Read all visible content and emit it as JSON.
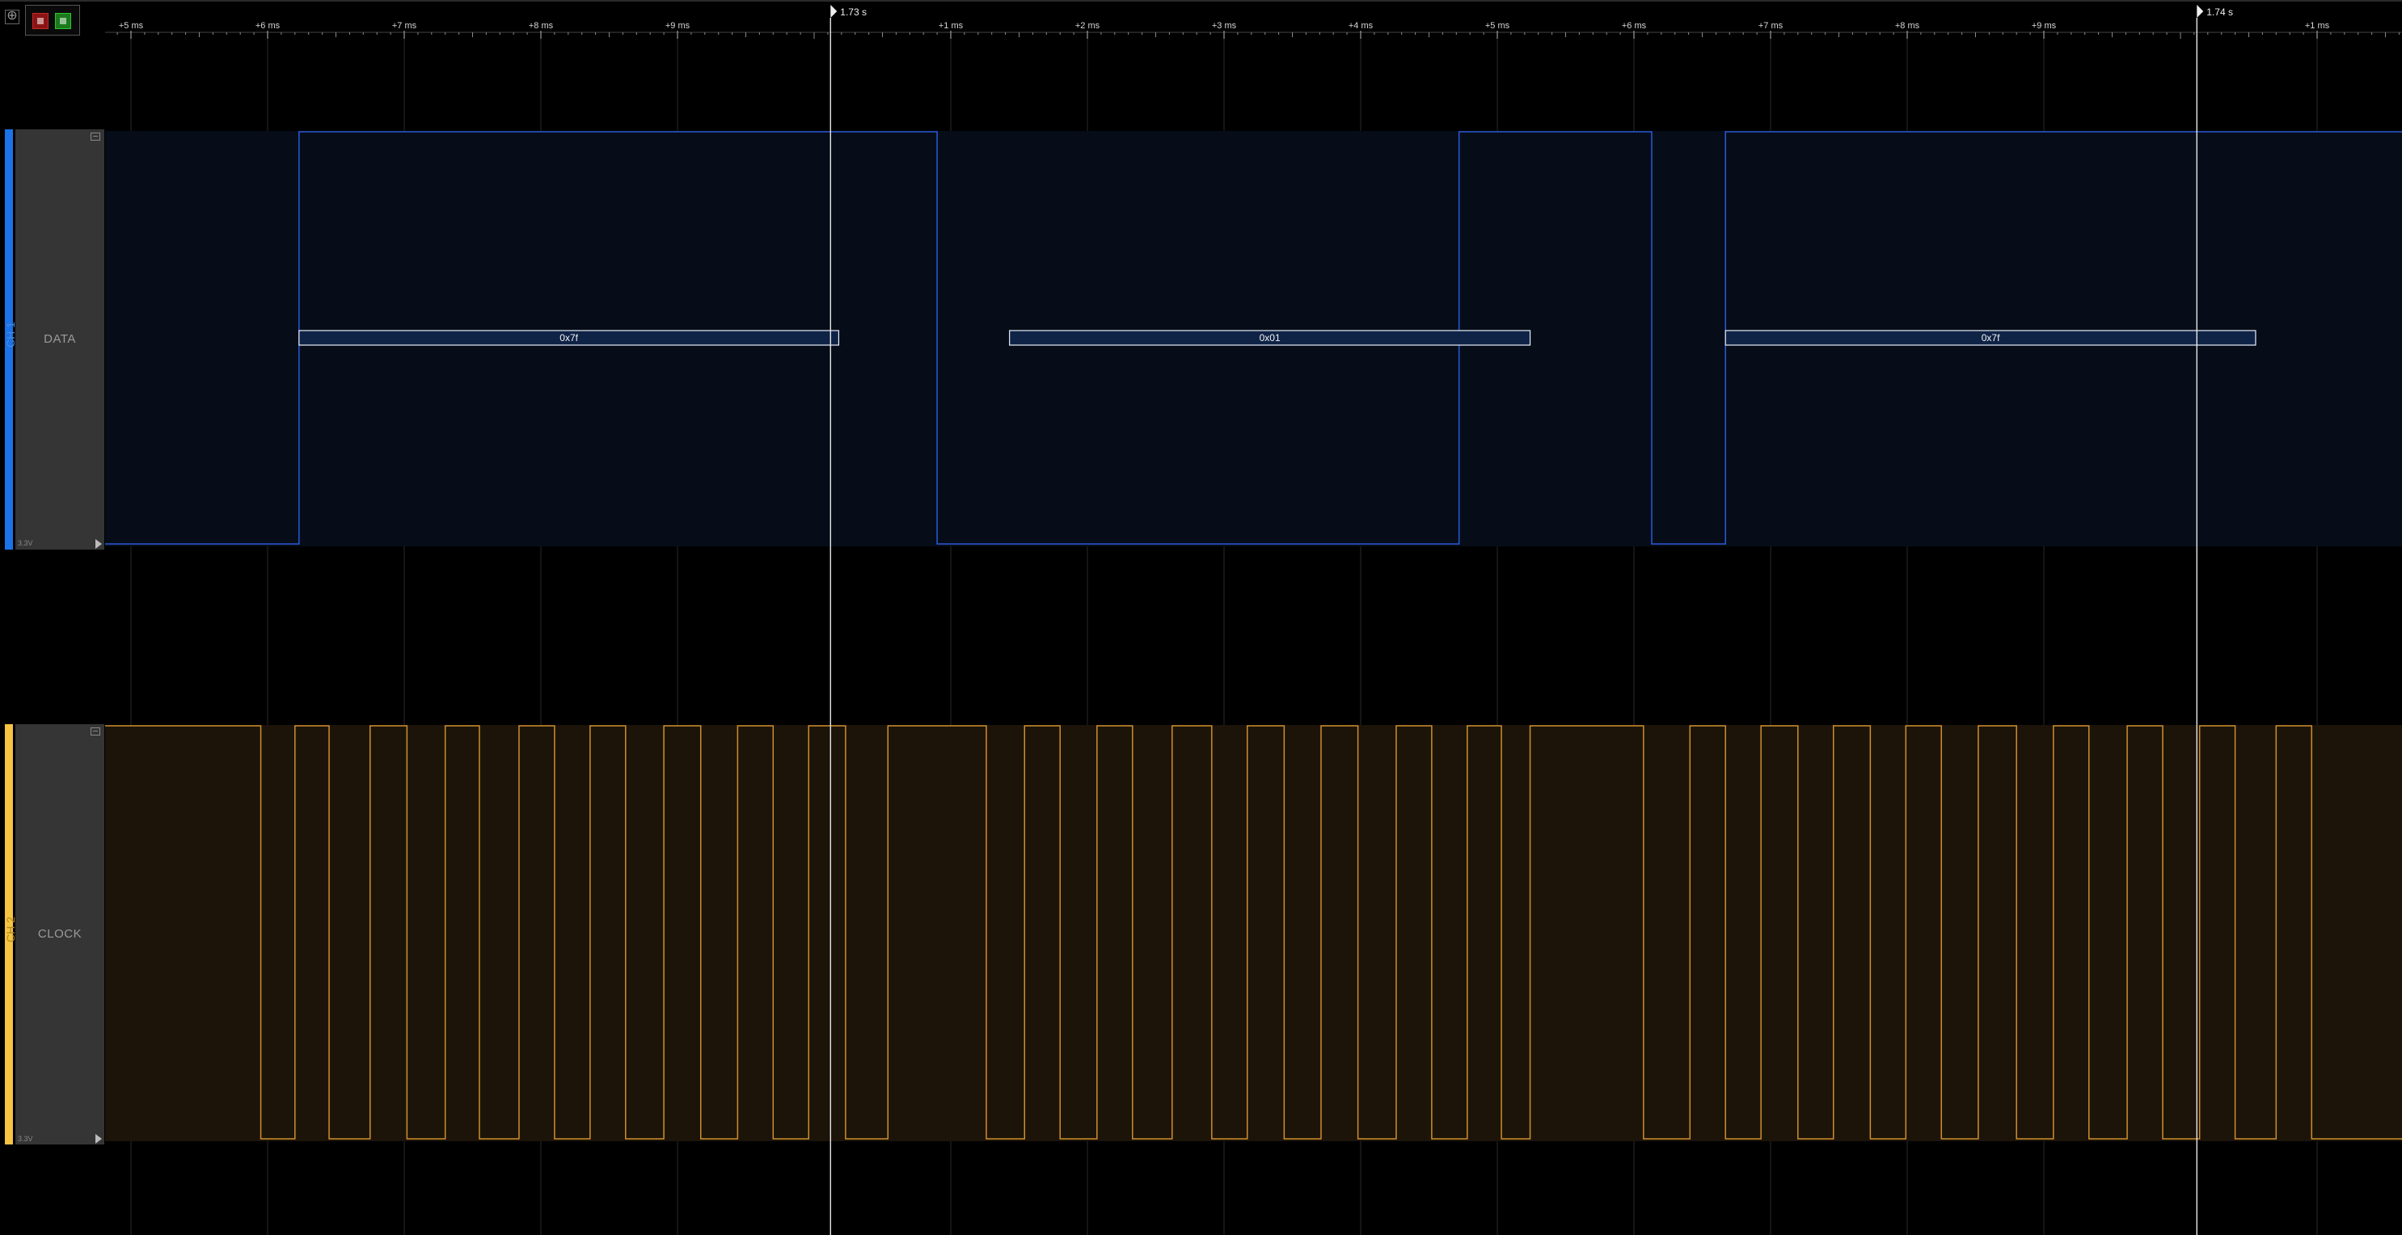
{
  "toolbar": {
    "expand_icon": "expand-icon",
    "stop_icon": "stop-icon",
    "start_icon": "start-icon"
  },
  "timeline": {
    "ticks_ms": [
      {
        "label": "+5 ms",
        "ms": 5
      },
      {
        "label": "+6 ms",
        "ms": 6
      },
      {
        "label": "+7 ms",
        "ms": 7
      },
      {
        "label": "+8 ms",
        "ms": 8
      },
      {
        "label": "+9 ms",
        "ms": 9
      },
      {
        "label": "+1 ms",
        "ms": 11
      },
      {
        "label": "+2 ms",
        "ms": 12
      },
      {
        "label": "+3 ms",
        "ms": 13
      },
      {
        "label": "+4 ms",
        "ms": 14
      },
      {
        "label": "+5 ms",
        "ms": 15
      },
      {
        "label": "+6 ms",
        "ms": 16
      },
      {
        "label": "+7 ms",
        "ms": 17
      },
      {
        "label": "+8 ms",
        "ms": 18
      },
      {
        "label": "+9 ms",
        "ms": 19
      },
      {
        "label": "+1 ms",
        "ms": 21
      }
    ],
    "markers": [
      {
        "label": "1.73 s",
        "ms": 10.12
      },
      {
        "label": "1.74 s",
        "ms": 20.12
      }
    ]
  },
  "channels": [
    {
      "id": "CH 1",
      "name": "DATA",
      "color": "#1a73e8",
      "trace_color": "#2a5ad8",
      "fill_color": "#060d19",
      "volt_label": "3.3V",
      "levels": [
        {
          "start_ms": 4.8,
          "end_ms": 6.23,
          "level": 0
        },
        {
          "start_ms": 6.23,
          "end_ms": 10.9,
          "level": 1
        },
        {
          "start_ms": 10.9,
          "end_ms": 14.72,
          "level": 0
        },
        {
          "start_ms": 14.72,
          "end_ms": 16.13,
          "level": 1
        },
        {
          "start_ms": 16.13,
          "end_ms": 16.67,
          "level": 0
        },
        {
          "start_ms": 16.67,
          "end_ms": 21.7,
          "level": 1
        }
      ],
      "decoded": [
        {
          "start_ms": 6.23,
          "end_ms": 10.18,
          "text": "0x7f"
        },
        {
          "start_ms": 11.43,
          "end_ms": 15.24,
          "text": "0x01"
        },
        {
          "start_ms": 16.67,
          "end_ms": 20.55,
          "text": "0x7f"
        }
      ]
    },
    {
      "id": "CH 2",
      "name": "CLOCK",
      "color": "#f6c342",
      "trace_color": "#d08e2a",
      "fill_color": "#1c1409",
      "volt_label": "3.3V",
      "edges_ms": [
        4.8,
        5.95,
        6.2,
        6.45,
        6.75,
        7.02,
        7.3,
        7.55,
        7.84,
        8.1,
        8.36,
        8.62,
        8.9,
        9.17,
        9.44,
        9.7,
        9.96,
        10.23,
        10.54,
        11.26,
        11.54,
        11.8,
        12.07,
        12.33,
        12.62,
        12.91,
        13.17,
        13.44,
        13.71,
        13.98,
        14.26,
        14.52,
        14.78,
        15.03,
        15.24,
        16.07,
        16.41,
        16.67,
        16.93,
        17.2,
        17.46,
        17.73,
        17.99,
        18.25,
        18.52,
        18.8,
        19.07,
        19.33,
        19.61,
        19.87,
        20.14,
        20.4,
        20.7,
        20.96,
        21.7
      ],
      "start_level": 1
    }
  ]
}
